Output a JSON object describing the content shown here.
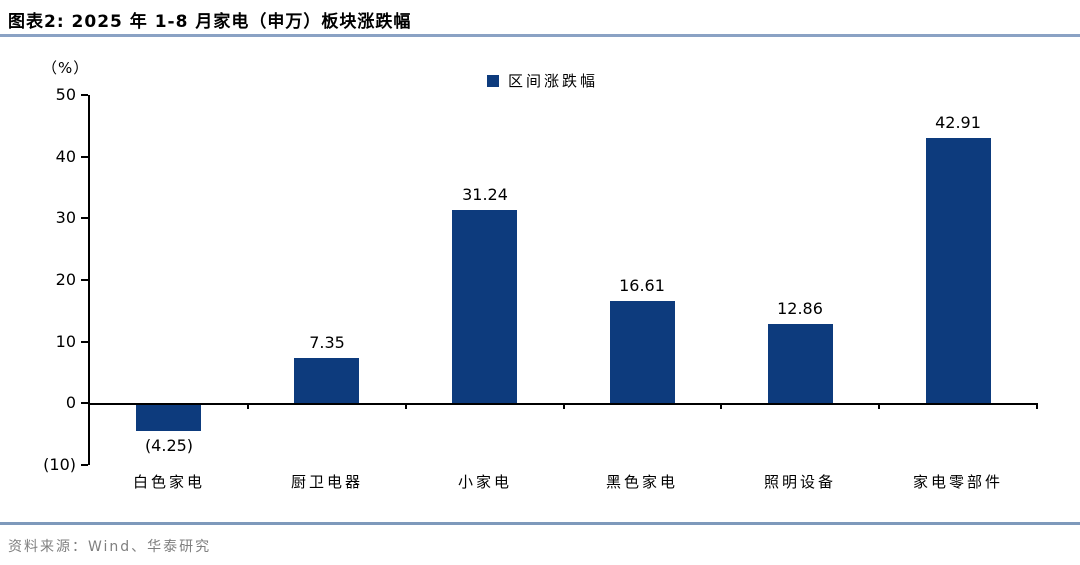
{
  "header": {
    "title": "图表2:  2025 年 1-8 月家电（申万）板块涨跌幅"
  },
  "chart": {
    "unit_label": "（%）",
    "legend_label": "区间涨跌幅"
  },
  "chart_data": {
    "type": "bar",
    "title": "2025 年 1-8 月家电（申万）板块涨跌幅",
    "legend": [
      "区间涨跌幅"
    ],
    "legend_position": "top-center",
    "unit": "%",
    "categories": [
      "白色家电",
      "厨卫电器",
      "小家电",
      "黑色家电",
      "照明设备",
      "家电零部件"
    ],
    "values": [
      -4.25,
      7.35,
      31.24,
      16.61,
      12.86,
      42.91
    ],
    "value_labels": [
      "(4.25)",
      "7.35",
      "31.24",
      "16.61",
      "12.86",
      "42.91"
    ],
    "ylim": [
      -10,
      50
    ],
    "yticks": [
      50,
      40,
      30,
      20,
      10,
      0,
      -10
    ],
    "ytick_labels": [
      "50",
      "40",
      "30",
      "20",
      "10",
      "0",
      "(10)"
    ],
    "grid": false,
    "bar_color": "#0d3b7d",
    "axis_color": "#000000"
  },
  "styles": {
    "title_rule_color": "#8aa2c4",
    "source_rule_color": "#7e99bb"
  },
  "footer": {
    "source": "资料来源：Wind、华泰研究"
  }
}
